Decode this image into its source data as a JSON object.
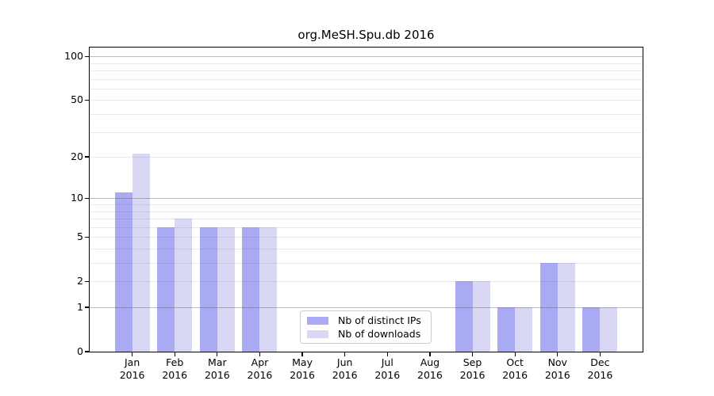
{
  "chart_data": {
    "type": "bar",
    "title": "org.MeSH.Spu.db 2016",
    "x": [
      {
        "month": "Jan",
        "year": "2016"
      },
      {
        "month": "Feb",
        "year": "2016"
      },
      {
        "month": "Mar",
        "year": "2016"
      },
      {
        "month": "Apr",
        "year": "2016"
      },
      {
        "month": "May",
        "year": "2016"
      },
      {
        "month": "Jun",
        "year": "2016"
      },
      {
        "month": "Jul",
        "year": "2016"
      },
      {
        "month": "Aug",
        "year": "2016"
      },
      {
        "month": "Sep",
        "year": "2016"
      },
      {
        "month": "Oct",
        "year": "2016"
      },
      {
        "month": "Nov",
        "year": "2016"
      },
      {
        "month": "Dec",
        "year": "2016"
      }
    ],
    "series": [
      {
        "name": "Nb of distinct IPs",
        "color": "#a9a9f4",
        "values": [
          11,
          6,
          6,
          6,
          0,
          0,
          0,
          0,
          2,
          1,
          3,
          1
        ]
      },
      {
        "name": "Nb of downloads",
        "color": "#d8d8f5",
        "values": [
          21,
          7,
          6,
          6,
          0,
          0,
          0,
          0,
          2,
          1,
          3,
          1
        ]
      }
    ],
    "yscale": "log1p",
    "ylim": [
      0,
      115
    ],
    "yticks": [
      0,
      1,
      2,
      5,
      10,
      20,
      50,
      100
    ],
    "grid": {
      "minor_values": [
        2,
        3,
        4,
        5,
        6,
        7,
        8,
        9,
        20,
        30,
        40,
        50,
        60,
        70,
        80,
        90
      ],
      "major_values": [
        1,
        10,
        100
      ],
      "minor_color": "#ececec",
      "major_color": "#b9b9b9"
    },
    "legend": {
      "position": "lower center-left",
      "entries": [
        "Nb of distinct IPs",
        "Nb of downloads"
      ]
    },
    "xlabel": "",
    "ylabel": ""
  }
}
